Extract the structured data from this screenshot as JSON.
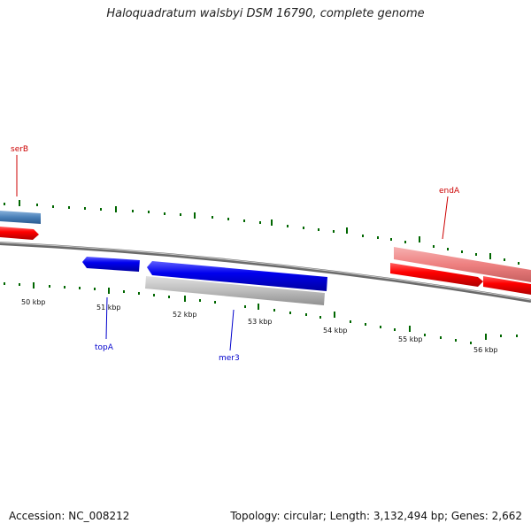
{
  "title": "Haloquadratum walsbyi DSM 16790, complete genome",
  "footer": {
    "accession": "Accession: NC_008212",
    "summary": "Topology: circular; Length: 3,132,494 bp; Genes: 2,662"
  },
  "scale_labels": [
    "50 kbp",
    "51 kbp",
    "52 kbp",
    "53 kbp",
    "54 kbp",
    "55 kbp",
    "56 kbp"
  ],
  "genes": [
    {
      "name": "serB",
      "color": "#cc0000"
    },
    {
      "name": "endA",
      "color": "#cc0000"
    },
    {
      "name": "topA",
      "color": "#0000cc"
    },
    {
      "name": "mer3",
      "color": "#0000cc"
    }
  ],
  "colors": {
    "forward_cds": "#ff0000",
    "forward_cds_light": "#f08080",
    "reverse_cds": "#0000ee",
    "reverse_gray": "#b8b8b8",
    "steelblue": "#4a80b8",
    "backbone": "#777777",
    "tick": "#006600"
  }
}
